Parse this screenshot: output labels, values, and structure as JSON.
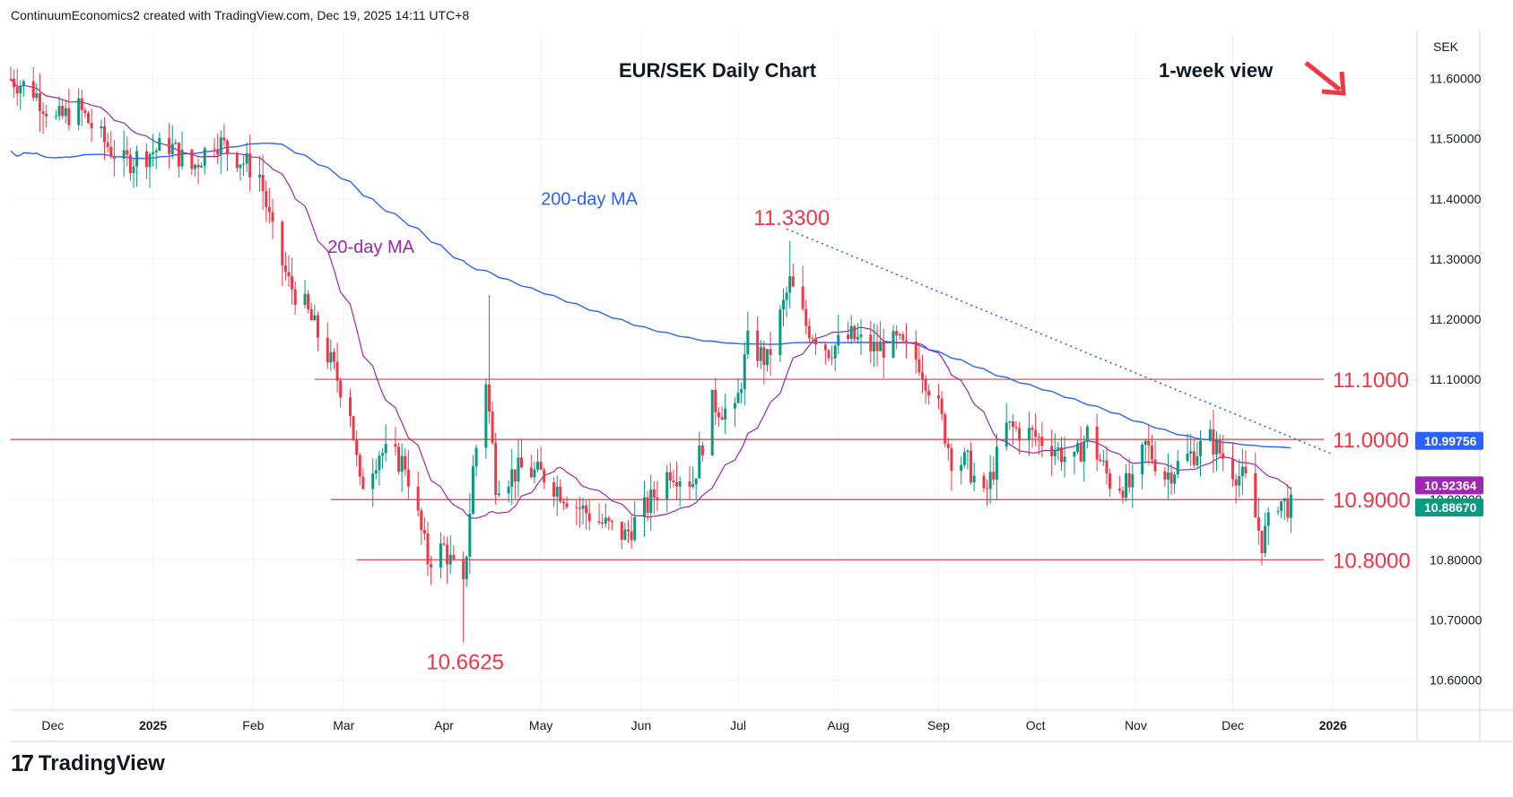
{
  "header": {
    "attribution": "ContinuumEconomics2 created with TradingView.com, Dec 19, 2025 14:11 UTC+8"
  },
  "footer": {
    "brand": "TradingView"
  },
  "colors": {
    "up": "#089981",
    "down": "#f23645",
    "ma200": "#2962ff",
    "ma20": "#9c27b0",
    "level": "#f23645",
    "grid": "#f0f3fa",
    "axis_text": "#131722",
    "tag_ma200": "#2962ff",
    "tag_ma20": "#9c27b0",
    "tag_price": "#089981"
  },
  "chart_data": {
    "type": "candlestick",
    "title": "EUR/SEK Daily Chart",
    "subtitle": "1-week view",
    "trend_arrow": "down-right-arrow",
    "currency_label": "SEK",
    "ylim": [
      10.55,
      11.68
    ],
    "y_ticks": [
      "11.60000",
      "11.50000",
      "11.40000",
      "11.30000",
      "11.20000",
      "11.10000",
      "11.00000",
      "10.90000",
      "10.80000",
      "10.70000",
      "10.60000"
    ],
    "x_ticks": [
      "Dec",
      "2025",
      "Feb",
      "Mar",
      "Apr",
      "May",
      "Jun",
      "Jul",
      "Aug",
      "Sep",
      "Oct",
      "Nov",
      "Dec",
      "2026"
    ],
    "x_start": "2024-11-18",
    "x_end": "2026-01-27",
    "levels": [
      {
        "value": 11.1,
        "label": "11.1000",
        "from": "2025-02-20"
      },
      {
        "value": 11.0,
        "label": "11.0000",
        "from": "2024-11-18"
      },
      {
        "value": 10.9,
        "label": "10.9000",
        "from": "2025-02-25"
      },
      {
        "value": 10.8,
        "label": "10.8000",
        "from": "2025-03-05"
      }
    ],
    "annotations": [
      {
        "text": "11.3300",
        "date": "2025-07-17",
        "value": 11.33,
        "position": "above"
      },
      {
        "text": "10.6625",
        "date": "2025-04-07",
        "value": 10.6625,
        "position": "below"
      }
    ],
    "series_labels": [
      {
        "text": "200-day MA",
        "date": "2025-05-01",
        "value": 11.39
      },
      {
        "text": "20-day MA",
        "date": "2025-02-24",
        "value": 11.31
      }
    ],
    "trendline": {
      "from": {
        "date": "2025-07-16",
        "value": 11.35
      },
      "to": {
        "date": "2026-01-01",
        "value": 10.975
      }
    },
    "price_tags": [
      {
        "value": 10.99756,
        "text": "10.99756",
        "series": "ma200"
      },
      {
        "value": 10.92364,
        "text": "10.92364",
        "series": "ma20"
      },
      {
        "value": 10.8867,
        "text": "10.88670",
        "series": "price"
      }
    ],
    "anchors": [
      [
        "2024-11-18",
        11.6
      ],
      [
        "2024-11-25",
        11.58
      ],
      [
        "2024-12-02",
        11.53
      ],
      [
        "2024-12-09",
        11.55
      ],
      [
        "2024-12-16",
        11.5
      ],
      [
        "2024-12-23",
        11.46
      ],
      [
        "2025-01-06",
        11.49
      ],
      [
        "2025-01-13",
        11.45
      ],
      [
        "2025-01-20",
        11.5
      ],
      [
        "2025-01-27",
        11.47
      ],
      [
        "2025-02-03",
        11.44
      ],
      [
        "2025-02-07",
        11.34
      ],
      [
        "2025-02-12",
        11.26
      ],
      [
        "2025-02-17",
        11.22
      ],
      [
        "2025-02-24",
        11.14
      ],
      [
        "2025-03-03",
        11.05
      ],
      [
        "2025-03-06",
        10.92
      ],
      [
        "2025-03-12",
        10.98
      ],
      [
        "2025-03-20",
        10.96
      ],
      [
        "2025-03-27",
        10.8
      ],
      [
        "2025-04-01",
        10.82
      ],
      [
        "2025-04-07",
        10.75
      ],
      [
        "2025-04-10",
        10.95
      ],
      [
        "2025-04-14",
        11.1
      ],
      [
        "2025-04-17",
        10.93
      ],
      [
        "2025-04-25",
        10.95
      ],
      [
        "2025-05-02",
        10.94
      ],
      [
        "2025-05-12",
        10.89
      ],
      [
        "2025-05-20",
        10.86
      ],
      [
        "2025-05-27",
        10.84
      ],
      [
        "2025-06-03",
        10.89
      ],
      [
        "2025-06-10",
        10.95
      ],
      [
        "2025-06-17",
        10.93
      ],
      [
        "2025-06-23",
        11.06
      ],
      [
        "2025-06-30",
        11.04
      ],
      [
        "2025-07-04",
        11.16
      ],
      [
        "2025-07-10",
        11.13
      ],
      [
        "2025-07-17",
        11.26
      ],
      [
        "2025-07-22",
        11.19
      ],
      [
        "2025-07-29",
        11.15
      ],
      [
        "2025-08-05",
        11.17
      ],
      [
        "2025-08-12",
        11.15
      ],
      [
        "2025-08-19",
        11.16
      ],
      [
        "2025-08-26",
        11.13
      ],
      [
        "2025-09-01",
        11.05
      ],
      [
        "2025-09-05",
        10.97
      ],
      [
        "2025-09-10",
        10.96
      ],
      [
        "2025-09-15",
        10.9
      ],
      [
        "2025-09-22",
        11.02
      ],
      [
        "2025-09-29",
        11.01
      ],
      [
        "2025-10-06",
        10.99
      ],
      [
        "2025-10-13",
        10.96
      ],
      [
        "2025-10-17",
        11.01
      ],
      [
        "2025-10-24",
        10.93
      ],
      [
        "2025-10-31",
        10.92
      ],
      [
        "2025-11-04",
        10.99
      ],
      [
        "2025-11-10",
        10.94
      ],
      [
        "2025-11-17",
        10.97
      ],
      [
        "2025-11-24",
        11.0
      ],
      [
        "2025-12-01",
        10.95
      ],
      [
        "2025-12-05",
        10.93
      ],
      [
        "2025-12-10",
        10.83
      ],
      [
        "2025-12-15",
        10.9
      ],
      [
        "2025-12-19",
        10.8867
      ]
    ]
  }
}
